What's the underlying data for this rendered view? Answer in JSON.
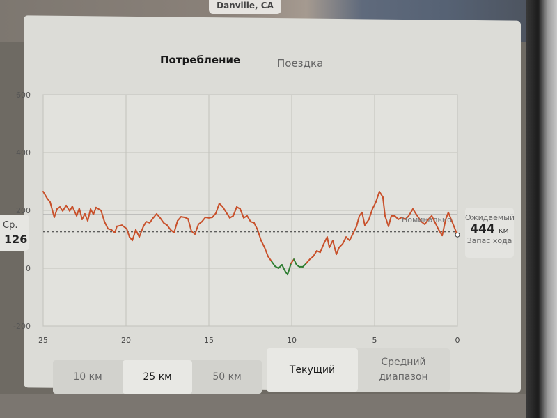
{
  "map": {
    "location_label": "Danville, CA"
  },
  "tabs": [
    {
      "label": "Потребление",
      "active": true
    },
    {
      "label": "Поездка",
      "active": false
    }
  ],
  "average": {
    "label": "Ср.",
    "value": "126"
  },
  "nominal_label": "Номинально",
  "range": {
    "label": "Ожидаемый",
    "value": "444",
    "unit": "км",
    "sublabel": "Запас хода"
  },
  "distance_buttons": [
    {
      "label": "10 км",
      "active": false
    },
    {
      "label": "25 км",
      "active": true
    },
    {
      "label": "50 км",
      "active": false
    }
  ],
  "mode_buttons": [
    {
      "label": "Текущий",
      "active": true
    },
    {
      "label": "Средний диапазон",
      "active": false
    }
  ],
  "colors": {
    "line": "#c8502a",
    "regen": "#2e7d32",
    "reference": "#9a9a9a"
  },
  "chart_data": {
    "type": "line",
    "xlim": [
      25,
      0
    ],
    "ylim": [
      -200,
      600
    ],
    "x_ticks": [
      "25",
      "20",
      "15",
      "10",
      "5",
      "0"
    ],
    "x_tick_values": [
      25,
      20,
      15,
      10,
      5,
      0
    ],
    "y_ticks": [
      "600",
      "400",
      "200",
      "0",
      "-200"
    ],
    "y_tick_values": [
      600,
      400,
      200,
      0,
      -200
    ],
    "grid": true,
    "average_value": 126,
    "nominal_value": 185,
    "x": [
      25,
      24.75,
      24.58,
      24.41,
      24.33,
      24.16,
      23.99,
      23.82,
      23.61,
      23.4,
      23.24,
      22.98,
      22.82,
      22.65,
      22.48,
      22.31,
      22.14,
      21.97,
      21.81,
      21.51,
      21.3,
      21.09,
      20.88,
      20.67,
      20.55,
      20.25,
      19.96,
      19.79,
      19.62,
      19.41,
      19.2,
      18.95,
      18.78,
      18.57,
      18.36,
      18.15,
      17.94,
      17.73,
      17.52,
      17.31,
      17.1,
      16.89,
      16.68,
      16.47,
      16.26,
      16.05,
      15.84,
      15.63,
      15.42,
      15.21,
      15.0,
      14.79,
      14.58,
      14.37,
      14.16,
      13.95,
      13.74,
      13.53,
      13.32,
      13.11,
      12.9,
      12.69,
      12.48,
      12.27,
      12.06,
      11.85,
      11.64,
      11.43,
      11.22,
      11.01,
      10.8,
      10.59,
      10.38,
      10.25,
      10.04,
      9.87,
      9.71,
      9.54,
      9.33,
      9.12,
      8.91,
      8.7,
      8.49,
      8.28,
      8.07,
      7.86,
      7.73,
      7.52,
      7.31,
      7.14,
      6.93,
      6.72,
      6.51,
      6.3,
      6.09,
      5.92,
      5.76,
      5.59,
      5.34,
      5.13,
      4.92,
      4.71,
      4.5,
      4.37,
      4.16,
      3.99,
      3.78,
      3.57,
      3.36,
      3.15,
      2.94,
      2.69,
      2.48,
      2.18,
      1.97,
      1.76,
      1.55,
      1.34,
      1.13,
      0.92,
      0.71,
      0.55,
      0.38,
      0.21,
      0.04
    ],
    "y": [
      265,
      241,
      229,
      193,
      176,
      205,
      212,
      198,
      217,
      198,
      214,
      181,
      207,
      169,
      188,
      164,
      205,
      186,
      210,
      200,
      161,
      137,
      133,
      123,
      145,
      149,
      137,
      108,
      96,
      133,
      108,
      145,
      161,
      157,
      174,
      188,
      174,
      157,
      149,
      133,
      123,
      164,
      178,
      176,
      171,
      128,
      118,
      152,
      161,
      176,
      174,
      176,
      190,
      224,
      212,
      193,
      174,
      181,
      212,
      205,
      174,
      181,
      161,
      157,
      133,
      96,
      72,
      41,
      24,
      7,
      0,
      12,
      -12,
      -22,
      17,
      31,
      12,
      5,
      5,
      17,
      31,
      41,
      60,
      55,
      84,
      108,
      72,
      96,
      48,
      72,
      84,
      108,
      96,
      120,
      145,
      181,
      193,
      149,
      169,
      205,
      229,
      265,
      246,
      181,
      145,
      181,
      181,
      169,
      176,
      169,
      181,
      205,
      186,
      161,
      152,
      169,
      181,
      157,
      133,
      113,
      169,
      193,
      169,
      145,
      120
    ]
  }
}
